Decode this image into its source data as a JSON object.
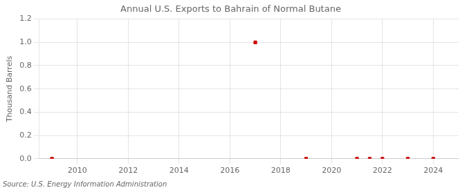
{
  "chart_data": {
    "type": "scatter",
    "title": "Annual U.S. Exports to Bahrain of Normal Butane",
    "ylabel": "Thousand Barrels",
    "source": "Source: U.S. Energy Information Administration",
    "x": [
      2009,
      2017,
      2019,
      2021,
      2021.5,
      2022,
      2023,
      2024
    ],
    "values": [
      0.0,
      1.0,
      0.0,
      0.0,
      0.0,
      0.0,
      0.0,
      0.0
    ],
    "color": "#cc0000",
    "marker": "square",
    "xlim": [
      2008.5,
      2025.0
    ],
    "xticks": [
      2010,
      2012,
      2014,
      2016,
      2018,
      2020,
      2022,
      2024
    ],
    "ylim": [
      0.0,
      1.2
    ],
    "yticks": [
      {
        "value": 0,
        "label": "0.0"
      },
      0.2,
      0.4,
      0.6,
      0.8,
      {
        "value": 1,
        "label": "1.0"
      },
      1.2
    ],
    "grid": true
  }
}
